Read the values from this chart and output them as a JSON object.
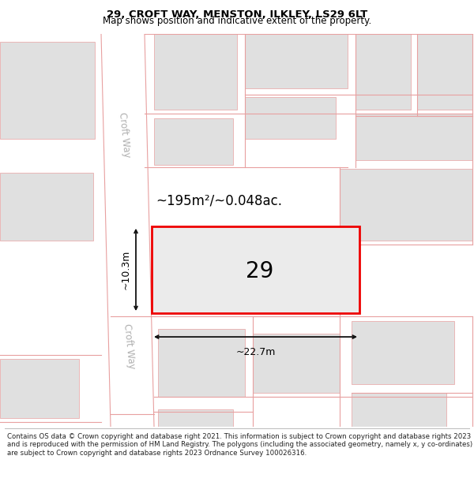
{
  "title": "29, CROFT WAY, MENSTON, ILKLEY, LS29 6LT",
  "subtitle": "Map shows position and indicative extent of the property.",
  "footer": "Contains OS data © Crown copyright and database right 2021. This information is subject to Crown copyright and database rights 2023 and is reproduced with the permission of HM Land Registry. The polygons (including the associated geometry, namely x, y co-ordinates) are subject to Crown copyright and database rights 2023 Ordnance Survey 100026316.",
  "bg_color": "#ffffff",
  "map_bg": "#eeeeee",
  "road_color": "#ffffff",
  "building_color": "#e0e0e0",
  "plot_outline_color": "#ee0000",
  "plot_fill_color": "#ebebeb",
  "road_line_color": "#e8a0a0",
  "dim_line_color": "#111111",
  "area_text": "~195m²/~0.048ac.",
  "plot_label": "29",
  "dim_width": "~22.7m",
  "dim_height": "~10.3m",
  "street_name": "Croft Way",
  "title_fontsize": 9.5,
  "subtitle_fontsize": 8.5,
  "footer_fontsize": 6.2
}
